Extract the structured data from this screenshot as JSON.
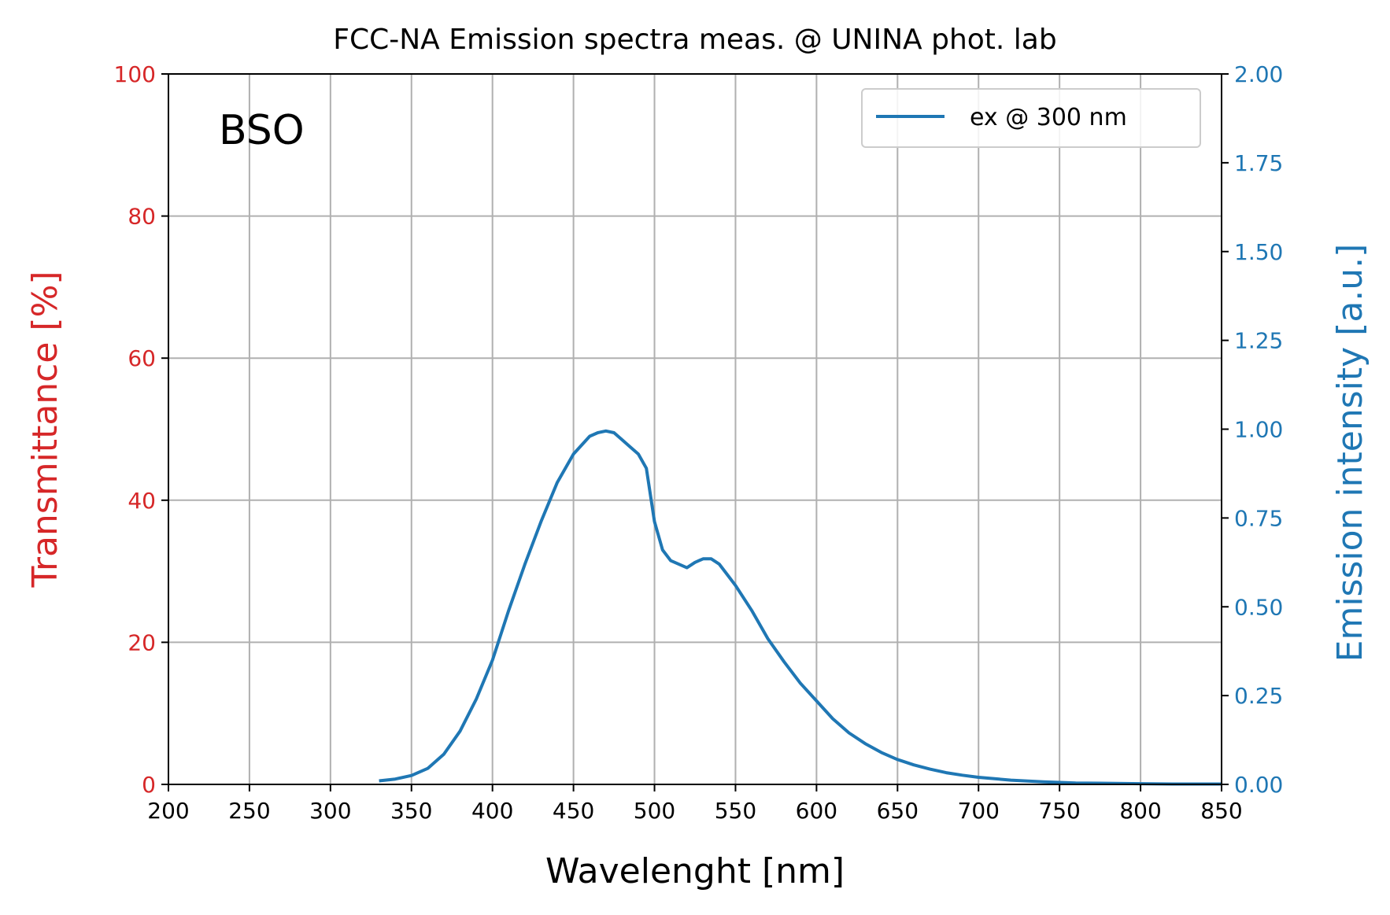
{
  "chart_data": {
    "type": "line",
    "title": "FCC-NA Emission spectra meas. @ UNINA phot. lab",
    "xlabel": "Wavelenght [nm]",
    "ylabel_left": "Transmittance [%]",
    "ylabel_right": "Emission intensity [a.u.]",
    "annotation": "BSO",
    "xlim": [
      200,
      850
    ],
    "ylim_left": [
      0,
      100
    ],
    "ylim_right": [
      0,
      2.0
    ],
    "x_ticks": [
      "200",
      "250",
      "300",
      "350",
      "400",
      "450",
      "500",
      "550",
      "600",
      "650",
      "700",
      "750",
      "800",
      "850"
    ],
    "y_left_ticks": [
      "0",
      "20",
      "40",
      "60",
      "80",
      "100"
    ],
    "y_right_ticks": [
      "0.00",
      "0.25",
      "0.50",
      "0.75",
      "1.00",
      "1.25",
      "1.50",
      "1.75",
      "2.00"
    ],
    "grid": true,
    "legend_position": "top-right",
    "colors": {
      "left_axis": "#d62728",
      "right_axis": "#1f77b4",
      "series": "#1f77b4"
    },
    "series": [
      {
        "name": "ex @ 300 nm",
        "axis": "right",
        "x": [
          330,
          340,
          350,
          360,
          370,
          380,
          390,
          400,
          410,
          420,
          430,
          440,
          450,
          460,
          465,
          470,
          475,
          480,
          485,
          490,
          495,
          500,
          505,
          510,
          515,
          520,
          525,
          530,
          535,
          540,
          545,
          550,
          560,
          570,
          580,
          590,
          600,
          610,
          620,
          630,
          640,
          650,
          660,
          670,
          680,
          690,
          700,
          720,
          740,
          760,
          780,
          800,
          820,
          850
        ],
        "y": [
          0.01,
          0.015,
          0.025,
          0.045,
          0.085,
          0.15,
          0.24,
          0.35,
          0.49,
          0.62,
          0.74,
          0.85,
          0.93,
          0.98,
          0.99,
          0.995,
          0.99,
          0.97,
          0.95,
          0.93,
          0.89,
          0.74,
          0.66,
          0.63,
          0.62,
          0.61,
          0.625,
          0.635,
          0.635,
          0.62,
          0.59,
          0.56,
          0.49,
          0.41,
          0.345,
          0.285,
          0.235,
          0.185,
          0.145,
          0.115,
          0.09,
          0.07,
          0.055,
          0.043,
          0.033,
          0.026,
          0.02,
          0.012,
          0.007,
          0.004,
          0.003,
          0.002,
          0.001,
          0.001
        ]
      }
    ]
  }
}
